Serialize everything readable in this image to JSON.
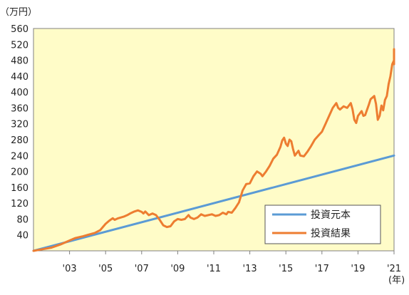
{
  "chart_data": {
    "type": "line",
    "y_unit": "（万円）",
    "x_unit": "(年)",
    "ylim": [
      0,
      560
    ],
    "y_ticks": [
      40,
      80,
      120,
      160,
      200,
      240,
      280,
      320,
      360,
      400,
      440,
      480,
      520,
      560
    ],
    "xlim": [
      2001.0,
      2021.0
    ],
    "x_ticks": [
      {
        "year": 2003,
        "label": "'03"
      },
      {
        "year": 2005,
        "label": "'05"
      },
      {
        "year": 2007,
        "label": "'07"
      },
      {
        "year": 2009,
        "label": "'09"
      },
      {
        "year": 2011,
        "label": "'11"
      },
      {
        "year": 2013,
        "label": "'13"
      },
      {
        "year": 2015,
        "label": "'15"
      },
      {
        "year": 2017,
        "label": "'17"
      },
      {
        "year": 2019,
        "label": "'19"
      },
      {
        "year": 2021,
        "label": "'21"
      }
    ],
    "grid": false,
    "legend_position": "bottom-right",
    "plot_background": "#fffcc8",
    "series": [
      {
        "name": "投資元本",
        "color": "#5b9bd5",
        "points": [
          [
            2001.0,
            0
          ],
          [
            2021.0,
            240
          ]
        ]
      },
      {
        "name": "投資結果",
        "color": "#ed7d31",
        "points": [
          [
            2001.0,
            0
          ],
          [
            2001.5,
            4
          ],
          [
            2002.0,
            8
          ],
          [
            2002.5,
            16
          ],
          [
            2003.0,
            26
          ],
          [
            2003.3,
            32
          ],
          [
            2003.7,
            36
          ],
          [
            2004.0,
            40
          ],
          [
            2004.4,
            45
          ],
          [
            2004.7,
            52
          ],
          [
            2005.0,
            68
          ],
          [
            2005.2,
            76
          ],
          [
            2005.4,
            82
          ],
          [
            2005.5,
            78
          ],
          [
            2005.7,
            82
          ],
          [
            2006.0,
            86
          ],
          [
            2006.2,
            90
          ],
          [
            2006.4,
            95
          ],
          [
            2006.6,
            99
          ],
          [
            2006.8,
            102
          ],
          [
            2007.0,
            98
          ],
          [
            2007.1,
            94
          ],
          [
            2007.2,
            99
          ],
          [
            2007.4,
            90
          ],
          [
            2007.6,
            94
          ],
          [
            2007.8,
            90
          ],
          [
            2008.0,
            78
          ],
          [
            2008.2,
            64
          ],
          [
            2008.4,
            60
          ],
          [
            2008.6,
            62
          ],
          [
            2008.8,
            74
          ],
          [
            2009.0,
            80
          ],
          [
            2009.2,
            78
          ],
          [
            2009.4,
            80
          ],
          [
            2009.6,
            90
          ],
          [
            2009.7,
            84
          ],
          [
            2009.9,
            80
          ],
          [
            2010.1,
            84
          ],
          [
            2010.3,
            92
          ],
          [
            2010.5,
            88
          ],
          [
            2010.7,
            90
          ],
          [
            2010.9,
            92
          ],
          [
            2011.1,
            88
          ],
          [
            2011.3,
            90
          ],
          [
            2011.5,
            96
          ],
          [
            2011.7,
            92
          ],
          [
            2011.8,
            98
          ],
          [
            2012.0,
            96
          ],
          [
            2012.2,
            108
          ],
          [
            2012.4,
            122
          ],
          [
            2012.6,
            152
          ],
          [
            2012.8,
            168
          ],
          [
            2013.0,
            170
          ],
          [
            2013.2,
            188
          ],
          [
            2013.4,
            200
          ],
          [
            2013.6,
            194
          ],
          [
            2013.7,
            188
          ],
          [
            2013.9,
            200
          ],
          [
            2014.1,
            214
          ],
          [
            2014.3,
            232
          ],
          [
            2014.5,
            242
          ],
          [
            2014.7,
            262
          ],
          [
            2014.8,
            278
          ],
          [
            2014.9,
            285
          ],
          [
            2015.0,
            270
          ],
          [
            2015.1,
            264
          ],
          [
            2015.2,
            280
          ],
          [
            2015.3,
            276
          ],
          [
            2015.4,
            256
          ],
          [
            2015.5,
            240
          ],
          [
            2015.7,
            252
          ],
          [
            2015.8,
            240
          ],
          [
            2016.0,
            238
          ],
          [
            2016.2,
            250
          ],
          [
            2016.4,
            264
          ],
          [
            2016.6,
            280
          ],
          [
            2016.8,
            290
          ],
          [
            2017.0,
            300
          ],
          [
            2017.2,
            320
          ],
          [
            2017.4,
            340
          ],
          [
            2017.6,
            360
          ],
          [
            2017.8,
            372
          ],
          [
            2017.9,
            360
          ],
          [
            2018.0,
            356
          ],
          [
            2018.2,
            364
          ],
          [
            2018.4,
            360
          ],
          [
            2018.6,
            372
          ],
          [
            2018.7,
            356
          ],
          [
            2018.8,
            330
          ],
          [
            2018.9,
            322
          ],
          [
            2019.0,
            340
          ],
          [
            2019.2,
            352
          ],
          [
            2019.3,
            340
          ],
          [
            2019.4,
            342
          ],
          [
            2019.6,
            368
          ],
          [
            2019.7,
            382
          ],
          [
            2019.9,
            390
          ],
          [
            2020.0,
            370
          ],
          [
            2020.1,
            330
          ],
          [
            2020.2,
            340
          ],
          [
            2020.3,
            366
          ],
          [
            2020.4,
            354
          ],
          [
            2020.5,
            380
          ],
          [
            2020.6,
            390
          ],
          [
            2020.7,
            420
          ],
          [
            2020.8,
            440
          ],
          [
            2020.9,
            470
          ],
          [
            2021.0,
            480
          ],
          [
            2021.1,
            470
          ],
          [
            2021.3,
            488
          ],
          [
            2021.5,
            508
          ],
          [
            2021.6,
            496
          ],
          [
            2021.7,
            490
          ]
        ]
      }
    ]
  }
}
